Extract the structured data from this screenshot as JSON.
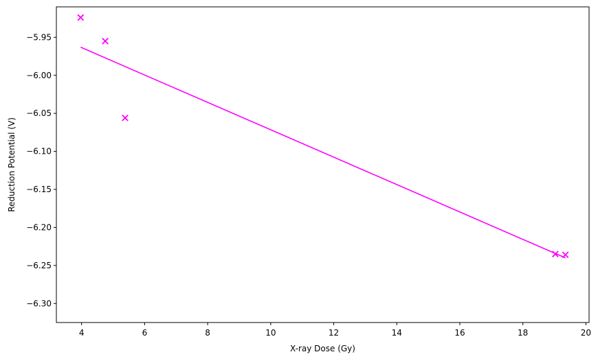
{
  "chart_data": {
    "type": "scatter",
    "xlabel": "X-ray Dose (Gy)",
    "ylabel": "Reduction Potential (V)",
    "xlim": [
      3.2,
      20.1
    ],
    "ylim": [
      -6.325,
      -5.91
    ],
    "xticks": [
      4,
      6,
      8,
      10,
      12,
      14,
      16,
      18,
      20
    ],
    "yticks": [
      -5.95,
      -6.0,
      -6.05,
      -6.1,
      -6.15,
      -6.2,
      -6.25,
      -6.3
    ],
    "xtick_labels": [
      "4",
      "6",
      "8",
      "10",
      "12",
      "14",
      "16",
      "18",
      "20"
    ],
    "ytick_labels": [
      "−5.95",
      "−6.00",
      "−6.05",
      "−6.10",
      "−6.15",
      "−6.20",
      "−6.25",
      "−6.30"
    ],
    "grid": false,
    "color": "#ff00ff",
    "points": {
      "x": [
        3.97,
        4.75,
        5.38,
        19.03,
        19.35
      ],
      "y": [
        -5.924,
        -5.955,
        -6.056,
        -6.235,
        -6.236
      ]
    },
    "fit_line": {
      "x": [
        3.97,
        19.35
      ],
      "y": [
        -5.963,
        -6.24
      ]
    }
  }
}
